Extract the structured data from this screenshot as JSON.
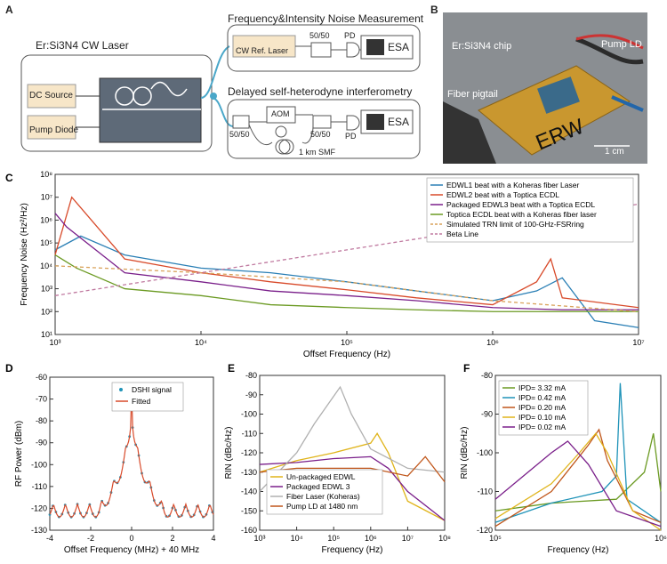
{
  "panels": {
    "A": {
      "letter": "A",
      "laser_title": "Er:Si3N4 CW Laser",
      "dc_source": "DC Source",
      "pump_diode": "Pump Diode",
      "fim_title": "Frequency&Intensity Noise Measurement",
      "cw_ref_laser": "CW Ref. Laser",
      "splitter_top": "50/50",
      "pd_top": "PD",
      "esa_top": "ESA",
      "dsh_title": "Delayed self-heterodyne interferometry",
      "split_left": "50/50",
      "aom": "AOM",
      "split_right": "50/50",
      "pd_bottom": "PD",
      "esa_bottom": "ESA",
      "smf": "1 km SMF"
    },
    "B": {
      "letter": "B",
      "chip": "Er:Si3N4 chip",
      "pump_ld": "Pump LD",
      "fiber_pigtail": "Fiber pigtail",
      "brand": "ERW",
      "scale": "1 cm"
    }
  },
  "colors": {
    "blue": "#2a7fb5",
    "red": "#d84a2a",
    "purple": "#7a1f8a",
    "green": "#6b9a22",
    "orange": "#d9a25a",
    "pink": "#c07aa0",
    "yellow": "#e0b41a",
    "teal": "#1f93b8",
    "brown": "#c0561a",
    "gray": "#b0b0b0"
  },
  "chart_data": [
    {
      "id": "C",
      "letter": "C",
      "type": "line",
      "xlabel": "Offset Frequency (Hz)",
      "ylabel": "Frequency Noise (Hz²/Hz)",
      "xscale": "log",
      "yscale": "log",
      "xlim": [
        1000,
        10000000
      ],
      "ylim": [
        10,
        100000000
      ],
      "xticks": [
        "10³",
        "10⁴",
        "10⁵",
        "10⁶",
        "10⁷"
      ],
      "yticks": [
        "10¹",
        "10²",
        "10³",
        "10⁴",
        "10⁵",
        "10⁶",
        "10⁷",
        "10⁸"
      ],
      "legend_position": "top-right",
      "series": [
        {
          "name": "EDWL1 beat with a Koheras fiber Laser",
          "color": "#2a7fb5",
          "style": "solid",
          "x": [
            1000,
            1500,
            3000,
            10000,
            30000,
            100000,
            300000,
            1000000,
            2000000,
            3000000,
            5000000,
            10000000
          ],
          "y": [
            50000,
            200000,
            30000,
            8000,
            5000,
            2000,
            800,
            300,
            800,
            3000,
            40,
            20
          ]
        },
        {
          "name": "EDWL2 beat with a Toptica ECDL",
          "color": "#d84a2a",
          "style": "solid",
          "x": [
            1000,
            1300,
            3000,
            10000,
            30000,
            100000,
            300000,
            1000000,
            2000000,
            2500000,
            3000000,
            10000000
          ],
          "y": [
            30000,
            10000000,
            20000,
            5000,
            2000,
            900,
            400,
            200,
            2000,
            20000,
            400,
            150
          ]
        },
        {
          "name": "Packaged EDWL3 beat with a Toptica ECDL",
          "color": "#7a1f8a",
          "style": "solid",
          "x": [
            1000,
            1200,
            3000,
            10000,
            30000,
            100000,
            300000,
            1000000,
            3000000,
            10000000
          ],
          "y": [
            2000000,
            500000,
            5000,
            2000,
            800,
            500,
            300,
            150,
            120,
            120
          ]
        },
        {
          "name": "Toptica ECDL beat with a Koheras fiber laser",
          "color": "#6b9a22",
          "style": "solid",
          "x": [
            1000,
            1400,
            3000,
            10000,
            30000,
            100000,
            300000,
            1000000,
            3000000,
            10000000
          ],
          "y": [
            30000,
            8000,
            1000,
            500,
            200,
            150,
            120,
            100,
            100,
            100
          ]
        },
        {
          "name": "Simulated TRN limit of 100-GHz-FSRring",
          "color": "#d9a25a",
          "style": "dashed",
          "x": [
            1000,
            10000,
            100000,
            1000000,
            10000000
          ],
          "y": [
            10000,
            5000,
            2000,
            300,
            100
          ]
        },
        {
          "name": "Beta Line",
          "color": "#c07aa0",
          "style": "dashed",
          "x": [
            1000,
            10000,
            100000,
            1000000,
            10000000
          ],
          "y": [
            500,
            5000,
            50000,
            500000,
            5000000
          ]
        }
      ]
    },
    {
      "id": "D",
      "letter": "D",
      "type": "line",
      "xlabel": "Offset Frequency (MHz) + 40 MHz",
      "ylabel": "RF Power (dBm)",
      "xlim": [
        -4,
        4
      ],
      "ylim": [
        -130,
        -60
      ],
      "xticks": [
        "-4",
        "-2",
        "0",
        "2",
        "4"
      ],
      "yticks": [
        "-130",
        "-120",
        "-110",
        "-100",
        "-90",
        "-80",
        "-70",
        "-60"
      ],
      "legend_position": "top-right",
      "series": [
        {
          "name": "DSHI signal",
          "color": "#1f93b8",
          "style": "dots"
        },
        {
          "name": "Fitted",
          "color": "#d84a2a",
          "style": "solid"
        }
      ]
    },
    {
      "id": "E",
      "letter": "E",
      "type": "line",
      "xlabel": "Frequency (Hz)",
      "ylabel": "RIN (dBc/Hz)",
      "xscale": "log",
      "xlim": [
        1000,
        100000000
      ],
      "ylim": [
        -160,
        -80
      ],
      "xticks": [
        "10³",
        "10⁴",
        "10⁵",
        "10⁶",
        "10⁷",
        "10⁸"
      ],
      "yticks": [
        "-160",
        "-150",
        "-140",
        "-130",
        "-120",
        "-110",
        "-100",
        "-90",
        "-80"
      ],
      "legend_position": "bottom-left",
      "series": [
        {
          "name": "Un-packaged EDWL",
          "color": "#e0b41a",
          "style": "solid",
          "x": [
            1000,
            10000,
            100000,
            1000000,
            1500000,
            3000000,
            10000000,
            100000000
          ],
          "y": [
            -130,
            -124,
            -120,
            -115,
            -110,
            -120,
            -145,
            -155
          ]
        },
        {
          "name": "Packaged EDWL 3",
          "color": "#7a1f8a",
          "style": "solid",
          "x": [
            1000,
            10000,
            100000,
            1000000,
            3000000,
            10000000,
            100000000
          ],
          "y": [
            -126,
            -125,
            -123,
            -122,
            -128,
            -140,
            -155
          ]
        },
        {
          "name": "Fiber Laser (Koheras)",
          "color": "#b0b0b0",
          "style": "solid",
          "x": [
            1000,
            10000,
            30000,
            150000,
            300000,
            1000000,
            10000000,
            100000000
          ],
          "y": [
            -140,
            -120,
            -105,
            -86,
            -100,
            -118,
            -128,
            -130
          ]
        },
        {
          "name": "Pump LD at 1480 nm",
          "color": "#c0561a",
          "style": "solid",
          "x": [
            1000,
            10000,
            100000,
            1000000,
            10000000,
            30000000,
            100000000
          ],
          "y": [
            -130,
            -128,
            -128,
            -128,
            -132,
            -122,
            -135
          ]
        }
      ]
    },
    {
      "id": "F",
      "letter": "F",
      "type": "line",
      "xlabel": "Frequency (Hz)",
      "ylabel": "RIN (dBc/Hz)",
      "xscale": "log",
      "xlim": [
        50000,
        3000000
      ],
      "ylim": [
        -120,
        -80
      ],
      "xticks": [
        "10⁵",
        "10⁶"
      ],
      "yticks": [
        "-120",
        "-110",
        "-100",
        "-90",
        "-80"
      ],
      "legend_position": "top-left",
      "series": [
        {
          "name": "IPD= 3.32 mA",
          "color": "#6b9a22",
          "style": "solid",
          "x": [
            50000,
            200000,
            1000000,
            2000000,
            2500000,
            3000000
          ],
          "y": [
            -115,
            -113,
            -112,
            -105,
            -95,
            -110
          ]
        },
        {
          "name": "IPD= 0.42 mA",
          "color": "#1f93b8",
          "style": "solid",
          "x": [
            50000,
            200000,
            700000,
            1000000,
            1100000,
            1300000,
            3000000
          ],
          "y": [
            -118,
            -113,
            -110,
            -106,
            -82,
            -112,
            -118
          ]
        },
        {
          "name": "IPD= 0.20 mA",
          "color": "#c0561a",
          "style": "solid",
          "x": [
            50000,
            200000,
            500000,
            650000,
            800000,
            1500000,
            3000000
          ],
          "y": [
            -119,
            -110,
            -98,
            -94,
            -102,
            -115,
            -118
          ]
        },
        {
          "name": "IPD= 0.10 mA",
          "color": "#e0b41a",
          "style": "solid",
          "x": [
            50000,
            200000,
            400000,
            600000,
            800000,
            1500000,
            3000000
          ],
          "y": [
            -117,
            -108,
            -100,
            -95,
            -100,
            -115,
            -120
          ]
        },
        {
          "name": "IPD= 0.02 mA",
          "color": "#7a1f8a",
          "style": "solid",
          "x": [
            50000,
            100000,
            200000,
            300000,
            500000,
            1000000,
            3000000
          ],
          "y": [
            -112,
            -106,
            -100,
            -97,
            -103,
            -115,
            -119
          ]
        }
      ]
    }
  ]
}
